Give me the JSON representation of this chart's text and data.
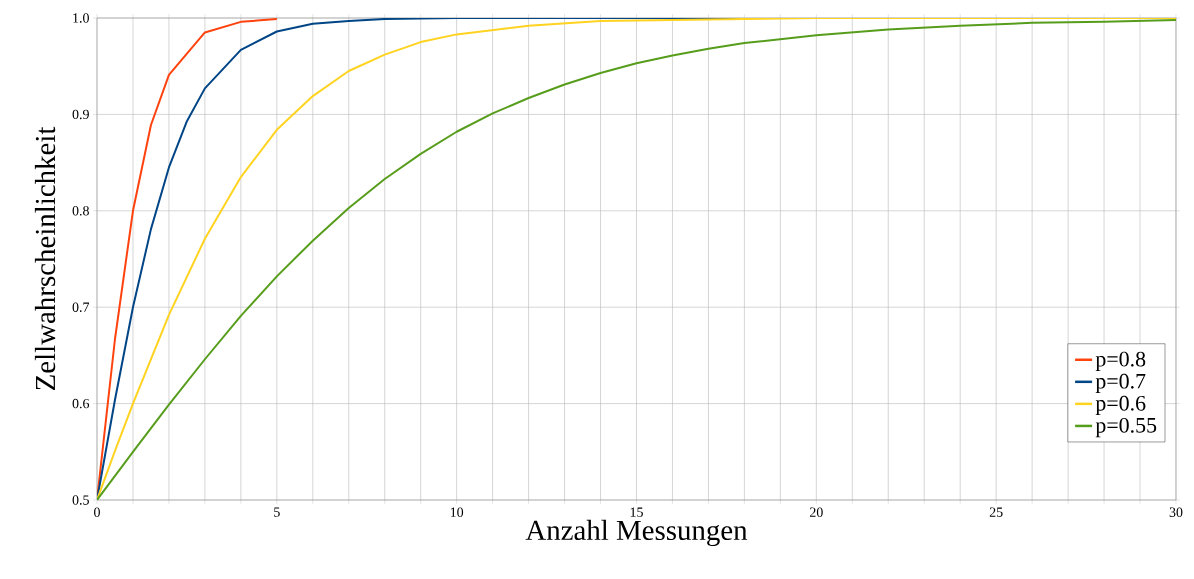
{
  "chart_data": {
    "type": "line",
    "xlabel": "Anzahl Messungen",
    "ylabel": "Zellwahrscheinlichkeit",
    "xlim": [
      0,
      30
    ],
    "ylim": [
      0.5,
      1.0
    ],
    "xticks": [
      0,
      {
        "value": 1,
        "label": null
      },
      {
        "value": 2,
        "label": null
      },
      {
        "value": 3,
        "label": null
      },
      {
        "value": 4,
        "label": null
      },
      5,
      {
        "value": 6,
        "label": null
      },
      {
        "value": 7,
        "label": null
      },
      {
        "value": 8,
        "label": null
      },
      {
        "value": 9,
        "label": null
      },
      10,
      {
        "value": 11,
        "label": null
      },
      {
        "value": 12,
        "label": null
      },
      {
        "value": 13,
        "label": null
      },
      {
        "value": 14,
        "label": null
      },
      15,
      {
        "value": 16,
        "label": null
      },
      {
        "value": 17,
        "label": null
      },
      {
        "value": 18,
        "label": null
      },
      {
        "value": 19,
        "label": null
      },
      20,
      {
        "value": 21,
        "label": null
      },
      {
        "value": 22,
        "label": null
      },
      {
        "value": 23,
        "label": null
      },
      {
        "value": 24,
        "label": null
      },
      25,
      {
        "value": 26,
        "label": null
      },
      {
        "value": 27,
        "label": null
      },
      {
        "value": 28,
        "label": null
      },
      {
        "value": 29,
        "label": null
      },
      30
    ],
    "yticks": [
      {
        "value": 0.5,
        "label": "0.5"
      },
      {
        "value": 0.6,
        "label": "0.6"
      },
      {
        "value": 0.7,
        "label": "0.7"
      },
      {
        "value": 0.8,
        "label": "0.8"
      },
      {
        "value": 0.9,
        "label": "0.9"
      },
      {
        "value": 1.0,
        "label": "1.0"
      }
    ],
    "grid": true,
    "legend": "bottom right",
    "marker": "none",
    "line_style": "solid",
    "series": [
      {
        "name": "p=0.8",
        "color": "#ff420e",
        "x": [
          0,
          0.5,
          1,
          1.5,
          2,
          3,
          4,
          5
        ],
        "values": [
          0.5,
          0.667,
          0.8,
          0.889,
          0.941,
          0.985,
          0.996,
          0.999
        ]
      },
      {
        "name": "p=0.7",
        "color": "#004586",
        "x": [
          0,
          0.5,
          1,
          1.5,
          2,
          2.5,
          3,
          4,
          5,
          6,
          7,
          8,
          10,
          15,
          30
        ],
        "values": [
          0.5,
          0.604,
          0.7,
          0.781,
          0.845,
          0.893,
          0.927,
          0.967,
          0.986,
          0.994,
          0.997,
          0.999,
          1.0,
          1.0,
          1.0
        ]
      },
      {
        "name": "p=0.6",
        "color": "#ffd320",
        "x": [
          0,
          0.5,
          1,
          2,
          3,
          4,
          5,
          6,
          7,
          8,
          9,
          10,
          12,
          14,
          16,
          20,
          30
        ],
        "values": [
          0.5,
          0.551,
          0.6,
          0.692,
          0.771,
          0.835,
          0.884,
          0.919,
          0.945,
          0.962,
          0.975,
          0.983,
          0.992,
          0.997,
          0.998,
          1.0,
          1.0
        ]
      },
      {
        "name": "p=0.55",
        "color": "#579d1c",
        "x": [
          0,
          1,
          2,
          3,
          4,
          5,
          6,
          7,
          8,
          9,
          10,
          11,
          12,
          13,
          14,
          15,
          16,
          17,
          18,
          20,
          22,
          24,
          26,
          28,
          30
        ],
        "values": [
          0.5,
          0.55,
          0.599,
          0.646,
          0.691,
          0.732,
          0.769,
          0.803,
          0.833,
          0.859,
          0.882,
          0.901,
          0.917,
          0.931,
          0.943,
          0.953,
          0.961,
          0.968,
          0.974,
          0.982,
          0.988,
          0.992,
          0.995,
          0.996,
          0.998
        ]
      }
    ]
  }
}
